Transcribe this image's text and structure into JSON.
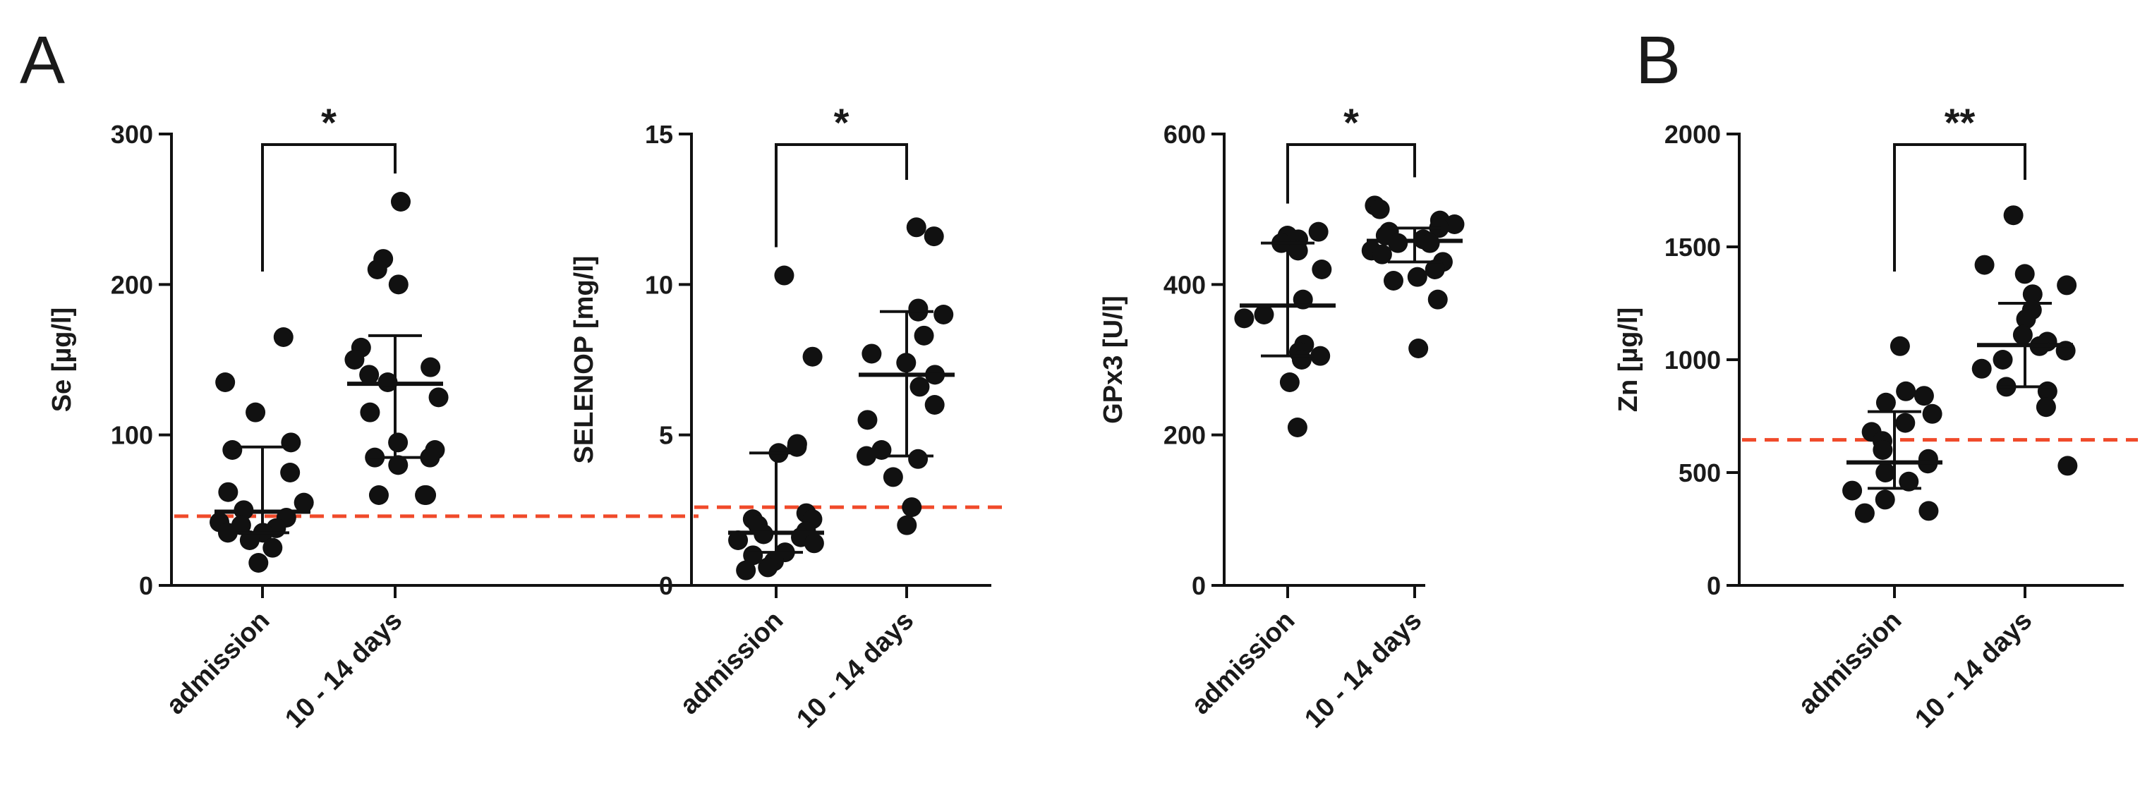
{
  "panel_labels": [
    "A",
    "B"
  ],
  "colors": {
    "points": "#111111",
    "axes": "#111111",
    "reference_line": "#f04a2a"
  },
  "chart_data": [
    {
      "type": "scatter",
      "panel": "A",
      "ylabel": "Se [µg/l]",
      "ylim": [
        0,
        300
      ],
      "yticks": [
        0,
        100,
        200,
        300
      ],
      "categories": [
        "admission",
        "10 - 14 days"
      ],
      "series": [
        {
          "name": "admission",
          "values": [
            165,
            135,
            115,
            95,
            90,
            75,
            62,
            55,
            50,
            45,
            42,
            40,
            38,
            35,
            35,
            30,
            25,
            15
          ],
          "median": 49,
          "q1": 35,
          "q3": 92
        },
        {
          "name": "10 - 14 days",
          "values": [
            255,
            217,
            210,
            200,
            158,
            150,
            145,
            140,
            135,
            125,
            115,
            95,
            90,
            85,
            85,
            80,
            60,
            60,
            60
          ],
          "median": 134,
          "q1": 85,
          "q3": 166
        }
      ],
      "reference_line": 46,
      "significance": "*"
    },
    {
      "type": "scatter",
      "panel": "A",
      "ylabel": "SELENOP [mg/l]",
      "ylim": [
        0,
        15
      ],
      "yticks": [
        0,
        5,
        10,
        15
      ],
      "categories": [
        "admission",
        "10 - 14 days"
      ],
      "series": [
        {
          "name": "admission",
          "values": [
            10.3,
            7.6,
            4.7,
            4.6,
            4.4,
            2.4,
            2.2,
            2.2,
            2.0,
            1.8,
            1.7,
            1.6,
            1.5,
            1.4,
            1.1,
            1.0,
            0.8,
            0.6,
            0.5
          ],
          "median": 1.75,
          "q1": 1.1,
          "q3": 4.4
        },
        {
          "name": "10 - 14 days",
          "values": [
            11.9,
            11.6,
            9.2,
            9.1,
            9.0,
            8.3,
            7.7,
            7.4,
            7.0,
            6.6,
            6.0,
            5.5,
            4.5,
            4.3,
            4.2,
            3.6,
            2.6,
            2.0
          ],
          "median": 7.0,
          "q1": 4.3,
          "q3": 9.1
        }
      ],
      "reference_line": 2.6,
      "significance": "*"
    },
    {
      "type": "scatter",
      "panel": "A",
      "ylabel": "GPx3 [U/l]",
      "ylim": [
        0,
        600
      ],
      "yticks": [
        0,
        200,
        400,
        600
      ],
      "categories": [
        "admission",
        "10 - 14 days"
      ],
      "series": [
        {
          "name": "admission",
          "values": [
            470,
            465,
            460,
            455,
            445,
            420,
            380,
            360,
            355,
            320,
            310,
            305,
            300,
            270,
            210
          ],
          "median": 372,
          "q1": 305,
          "q3": 455
        },
        {
          "name": "10 - 14 days",
          "values": [
            505,
            500,
            485,
            480,
            475,
            470,
            465,
            460,
            455,
            455,
            445,
            440,
            430,
            420,
            410,
            405,
            380,
            315
          ],
          "median": 458,
          "q1": 430,
          "q3": 475
        }
      ],
      "significance": "*"
    },
    {
      "type": "scatter",
      "panel": "B",
      "ylabel": "Zn [µg/l]",
      "ylim": [
        0,
        2000
      ],
      "yticks": [
        0,
        500,
        1000,
        1500,
        2000
      ],
      "categories": [
        "admission",
        "10 - 14 days"
      ],
      "series": [
        {
          "name": "admission",
          "values": [
            1060,
            860,
            840,
            810,
            760,
            720,
            680,
            640,
            600,
            560,
            540,
            500,
            460,
            420,
            380,
            330,
            320
          ],
          "median": 545,
          "q1": 430,
          "q3": 770
        },
        {
          "name": "10 - 14 days",
          "values": [
            1640,
            1420,
            1380,
            1330,
            1290,
            1220,
            1180,
            1110,
            1080,
            1060,
            1040,
            1000,
            960,
            880,
            860,
            790,
            530
          ],
          "median": 1065,
          "q1": 880,
          "q3": 1250
        }
      ],
      "reference_line": 645,
      "significance": "**"
    }
  ]
}
